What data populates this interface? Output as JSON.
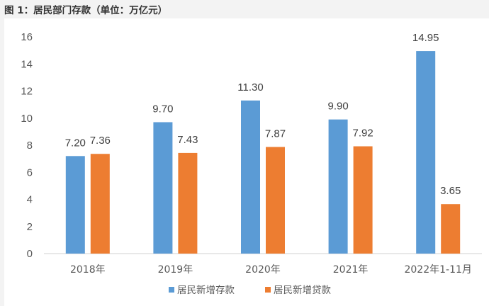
{
  "figure_title": "图 1：居民部门存款（单位：万亿元）",
  "chart_data": {
    "type": "bar",
    "title": "图 1：居民部门存款（单位：万亿元）",
    "categories": [
      "2018年",
      "2019年",
      "2020年",
      "2021年",
      "2022年1-11月"
    ],
    "series": [
      {
        "name": "居民新增存款",
        "color": "#5b9bd5",
        "values": [
          7.2,
          9.7,
          11.3,
          9.9,
          14.95
        ],
        "labels": [
          "7.20",
          "9.70",
          "11.30",
          "9.90",
          "14.95"
        ]
      },
      {
        "name": "居民新增贷款",
        "color": "#ed7d31",
        "values": [
          7.36,
          7.43,
          7.87,
          7.92,
          3.65
        ],
        "labels": [
          "7.36",
          "7.43",
          "7.87",
          "7.92",
          "3.65"
        ]
      }
    ],
    "ylim": [
      0,
      16
    ],
    "yticks": [
      0,
      2,
      4,
      6,
      8,
      10,
      12,
      14,
      16
    ],
    "xlabel": "",
    "ylabel": "",
    "grid": false,
    "legend": "bottom-center"
  }
}
